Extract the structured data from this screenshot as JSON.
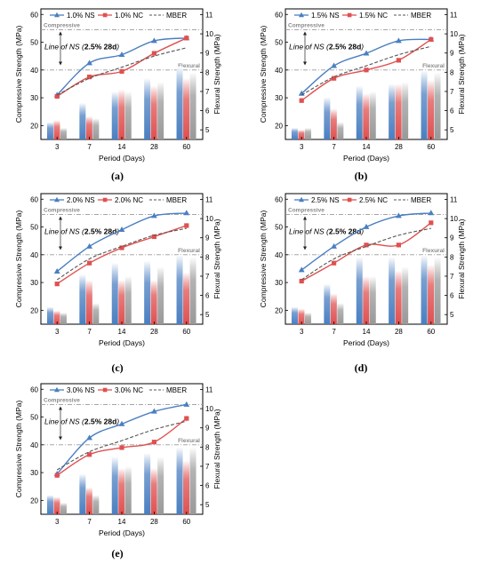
{
  "chart_data": [
    {
      "panel_label": "(a)",
      "type": "bar+line",
      "x_categories": [
        "3",
        "7",
        "14",
        "28",
        "60"
      ],
      "xlabel": "Period (Days)",
      "ylabel_left": "Compressive Strength (MPa)",
      "ylabel_right": "Flexural Strength (MPa)",
      "ylim_left": [
        15,
        62
      ],
      "yticks_left": [
        20,
        30,
        40,
        50,
        60
      ],
      "ylim_right": [
        4.5,
        11.3
      ],
      "yticks_right": [
        5,
        6,
        7,
        8,
        9,
        10,
        11
      ],
      "legend": [
        "1.0% NS",
        "1.0% NC",
        "MBER"
      ],
      "annotations": {
        "compressive": "Compressive",
        "flexural": "Flexural",
        "line_prefix": "Line of NS (",
        "line_bold": "2.5% 28d",
        "line_suffix": ")"
      },
      "reference_lines": {
        "compressive": 54.5,
        "flexural": 40.0
      },
      "series": [
        {
          "name": "1.0% NS",
          "kind": "line",
          "axis": "left",
          "color": "#4a7fc1",
          "marker": "triangle",
          "values": [
            31.0,
            42.5,
            45.5,
            50.5,
            51.5
          ]
        },
        {
          "name": "1.0% NC",
          "kind": "line",
          "axis": "left",
          "color": "#e05050",
          "marker": "square",
          "values": [
            30.5,
            37.5,
            39.5,
            46.0,
            51.5
          ]
        },
        {
          "name": "MBER",
          "kind": "dash",
          "axis": "left",
          "color": "#555555",
          "values": [
            31.0,
            37.0,
            41.0,
            45.0,
            48.0
          ]
        },
        {
          "name": "1.0% NS",
          "kind": "bar",
          "axis": "right",
          "color": "#4a7fc1",
          "values": [
            5.4,
            6.4,
            7.0,
            7.7,
            8.3
          ]
        },
        {
          "name": "1.0% NC",
          "kind": "bar",
          "axis": "right",
          "color": "#e05050",
          "values": [
            5.5,
            5.7,
            7.1,
            7.3,
            7.7
          ]
        },
        {
          "name": "MBER",
          "kind": "bar",
          "axis": "right",
          "color": "#999999",
          "values": [
            5.1,
            5.6,
            7.0,
            7.5,
            8.0
          ]
        }
      ]
    },
    {
      "panel_label": "(b)",
      "type": "bar+line",
      "x_categories": [
        "3",
        "7",
        "14",
        "28",
        "60"
      ],
      "xlabel": "Period (Days)",
      "ylabel_left": "Compressive Strength (MPa)",
      "ylabel_right": "Flexural Strength (MPa)",
      "ylim_left": [
        15,
        62
      ],
      "yticks_left": [
        20,
        30,
        40,
        50,
        60
      ],
      "ylim_right": [
        4.5,
        11.3
      ],
      "yticks_right": [
        5,
        6,
        7,
        8,
        9,
        10,
        11
      ],
      "legend": [
        "1.5% NS",
        "1.5% NC",
        "MBER"
      ],
      "annotations": {
        "compressive": "Compressive",
        "flexural": "Flexural",
        "line_prefix": "Line of NS (",
        "line_bold": "2.5% 28d",
        "line_suffix": ")"
      },
      "reference_lines": {
        "compressive": 54.5,
        "flexural": 40.0
      },
      "series": [
        {
          "name": "1.5% NS",
          "kind": "line",
          "axis": "left",
          "color": "#4a7fc1",
          "marker": "triangle",
          "values": [
            31.5,
            41.5,
            46.0,
            50.5,
            51.0
          ]
        },
        {
          "name": "1.5% NC",
          "kind": "line",
          "axis": "left",
          "color": "#e05050",
          "marker": "square",
          "values": [
            29.0,
            37.0,
            40.0,
            43.5,
            51.0
          ]
        },
        {
          "name": "MBER",
          "kind": "dash",
          "axis": "left",
          "color": "#555555",
          "values": [
            31.0,
            37.5,
            41.5,
            45.5,
            48.5
          ]
        },
        {
          "name": "1.5% NS",
          "kind": "bar",
          "axis": "right",
          "color": "#4a7fc1",
          "values": [
            5.1,
            6.7,
            7.3,
            7.4,
            8.1
          ]
        },
        {
          "name": "1.5% NC",
          "kind": "bar",
          "axis": "right",
          "color": "#e05050",
          "values": [
            5.0,
            6.1,
            6.9,
            7.4,
            7.6
          ]
        },
        {
          "name": "MBER",
          "kind": "bar",
          "axis": "right",
          "color": "#999999",
          "values": [
            5.1,
            5.4,
            7.0,
            7.5,
            8.0
          ]
        }
      ]
    },
    {
      "panel_label": "(c)",
      "type": "bar+line",
      "x_categories": [
        "3",
        "7",
        "14",
        "28",
        "60"
      ],
      "xlabel": "Period (Days)",
      "ylabel_left": "Compressive Strength (MPa)",
      "ylabel_right": "Flexural Strength (MPa)",
      "ylim_left": [
        15,
        62
      ],
      "yticks_left": [
        20,
        30,
        40,
        50,
        60
      ],
      "ylim_right": [
        4.5,
        11.3
      ],
      "yticks_right": [
        5,
        6,
        7,
        8,
        9,
        10,
        11
      ],
      "legend": [
        "2.0% NS",
        "2.0% NC",
        "MBER"
      ],
      "annotations": {
        "compressive": "Compressive",
        "flexural": "Flexural",
        "line_prefix": "Line of NS (",
        "line_bold": "2.5% 28d",
        "line_suffix": ")"
      },
      "reference_lines": {
        "compressive": 54.5,
        "flexural": 40.0
      },
      "series": [
        {
          "name": "2.0% NS",
          "kind": "line",
          "axis": "left",
          "color": "#4a7fc1",
          "marker": "triangle",
          "values": [
            34.0,
            43.0,
            49.0,
            54.0,
            55.0
          ]
        },
        {
          "name": "2.0% NC",
          "kind": "line",
          "axis": "left",
          "color": "#e05050",
          "marker": "square",
          "values": [
            29.5,
            37.0,
            42.5,
            46.5,
            50.5
          ]
        },
        {
          "name": "MBER",
          "kind": "dash",
          "axis": "left",
          "color": "#555555",
          "values": [
            31.0,
            38.5,
            43.0,
            47.0,
            49.5
          ]
        },
        {
          "name": "2.0% NS",
          "kind": "bar",
          "axis": "right",
          "color": "#4a7fc1",
          "values": [
            5.4,
            7.1,
            7.7,
            7.8,
            8.1
          ]
        },
        {
          "name": "2.0% NC",
          "kind": "bar",
          "axis": "right",
          "color": "#e05050",
          "values": [
            5.2,
            6.8,
            6.8,
            6.8,
            7.2
          ]
        },
        {
          "name": "MBER",
          "kind": "bar",
          "axis": "right",
          "color": "#999999",
          "values": [
            5.1,
            5.6,
            7.0,
            7.5,
            8.0
          ]
        }
      ]
    },
    {
      "panel_label": "(d)",
      "type": "bar+line",
      "x_categories": [
        "3",
        "7",
        "14",
        "28",
        "60"
      ],
      "xlabel": "Period (Days)",
      "ylabel_left": "Compressive Strength (MPa)",
      "ylabel_right": "Flexural Strength (MPa)",
      "ylim_left": [
        15,
        62
      ],
      "yticks_left": [
        20,
        30,
        40,
        50,
        60
      ],
      "ylim_right": [
        4.5,
        11.3
      ],
      "yticks_right": [
        5,
        6,
        7,
        8,
        9,
        10,
        11
      ],
      "legend": [
        "2.5% NS",
        "2.5% NC",
        "MBER"
      ],
      "annotations": {
        "compressive": "Compressive",
        "flexural": "Flexural",
        "line_prefix": "Line of NS (",
        "line_bold": "2.5% 28d",
        "line_suffix": ")"
      },
      "reference_lines": {
        "compressive": 54.5,
        "flexural": 40.0
      },
      "series": [
        {
          "name": "2.5% NS",
          "kind": "line",
          "axis": "left",
          "color": "#4a7fc1",
          "marker": "triangle",
          "values": [
            34.5,
            43.0,
            50.0,
            54.0,
            55.0
          ]
        },
        {
          "name": "2.5% NC",
          "kind": "line",
          "axis": "left",
          "color": "#e05050",
          "marker": "square",
          "values": [
            30.5,
            37.0,
            43.5,
            43.5,
            51.5
          ]
        },
        {
          "name": "MBER",
          "kind": "dash",
          "axis": "left",
          "color": "#555555",
          "values": [
            31.0,
            38.5,
            43.0,
            47.0,
            49.5
          ]
        },
        {
          "name": "2.5% NS",
          "kind": "bar",
          "axis": "right",
          "color": "#4a7fc1",
          "values": [
            5.4,
            6.6,
            8.0,
            8.0,
            8.1
          ]
        },
        {
          "name": "2.5% NC",
          "kind": "bar",
          "axis": "right",
          "color": "#e05050",
          "values": [
            5.3,
            6.1,
            7.0,
            7.3,
            7.6
          ]
        },
        {
          "name": "MBER",
          "kind": "bar",
          "axis": "right",
          "color": "#999999",
          "values": [
            5.1,
            5.6,
            7.0,
            7.5,
            8.0
          ]
        }
      ]
    },
    {
      "panel_label": "(e)",
      "type": "bar+line",
      "x_categories": [
        "3",
        "7",
        "14",
        "28",
        "60"
      ],
      "xlabel": "Period (Days)",
      "ylabel_left": "Compressive Strength (MPa)",
      "ylabel_right": "Flexural Strength (MPa)",
      "ylim_left": [
        15,
        62
      ],
      "yticks_left": [
        20,
        30,
        40,
        50,
        60
      ],
      "ylim_right": [
        4.5,
        11.3
      ],
      "yticks_right": [
        5,
        6,
        7,
        8,
        9,
        10,
        11
      ],
      "legend": [
        "3.0% NS",
        "3.0% NC",
        "MBER"
      ],
      "annotations": {
        "compressive": "Compressive",
        "flexural": "Flexural",
        "line_prefix": "Line of NS (",
        "line_bold": "2.5% 28d",
        "line_suffix": ")"
      },
      "reference_lines": {
        "compressive": 54.5,
        "flexural": 40.0
      },
      "series": [
        {
          "name": "3.0% NS",
          "kind": "line",
          "axis": "left",
          "color": "#4a7fc1",
          "marker": "triangle",
          "values": [
            29.5,
            42.5,
            47.5,
            52.0,
            54.5
          ]
        },
        {
          "name": "3.0% NC",
          "kind": "line",
          "axis": "left",
          "color": "#e05050",
          "marker": "square",
          "values": [
            29.0,
            36.5,
            39.0,
            41.0,
            49.5
          ]
        },
        {
          "name": "MBER",
          "kind": "dash",
          "axis": "left",
          "color": "#555555",
          "values": [
            31.0,
            37.5,
            41.5,
            45.5,
            48.5
          ]
        },
        {
          "name": "3.0% NS",
          "kind": "bar",
          "axis": "right",
          "color": "#4a7fc1",
          "values": [
            5.5,
            6.6,
            7.5,
            7.7,
            8.0
          ]
        },
        {
          "name": "3.0% NC",
          "kind": "bar",
          "axis": "right",
          "color": "#e05050",
          "values": [
            5.4,
            5.9,
            6.9,
            6.9,
            7.3
          ]
        },
        {
          "name": "MBER",
          "kind": "bar",
          "axis": "right",
          "color": "#999999",
          "values": [
            5.1,
            5.5,
            7.0,
            7.5,
            8.0
          ]
        }
      ]
    }
  ]
}
